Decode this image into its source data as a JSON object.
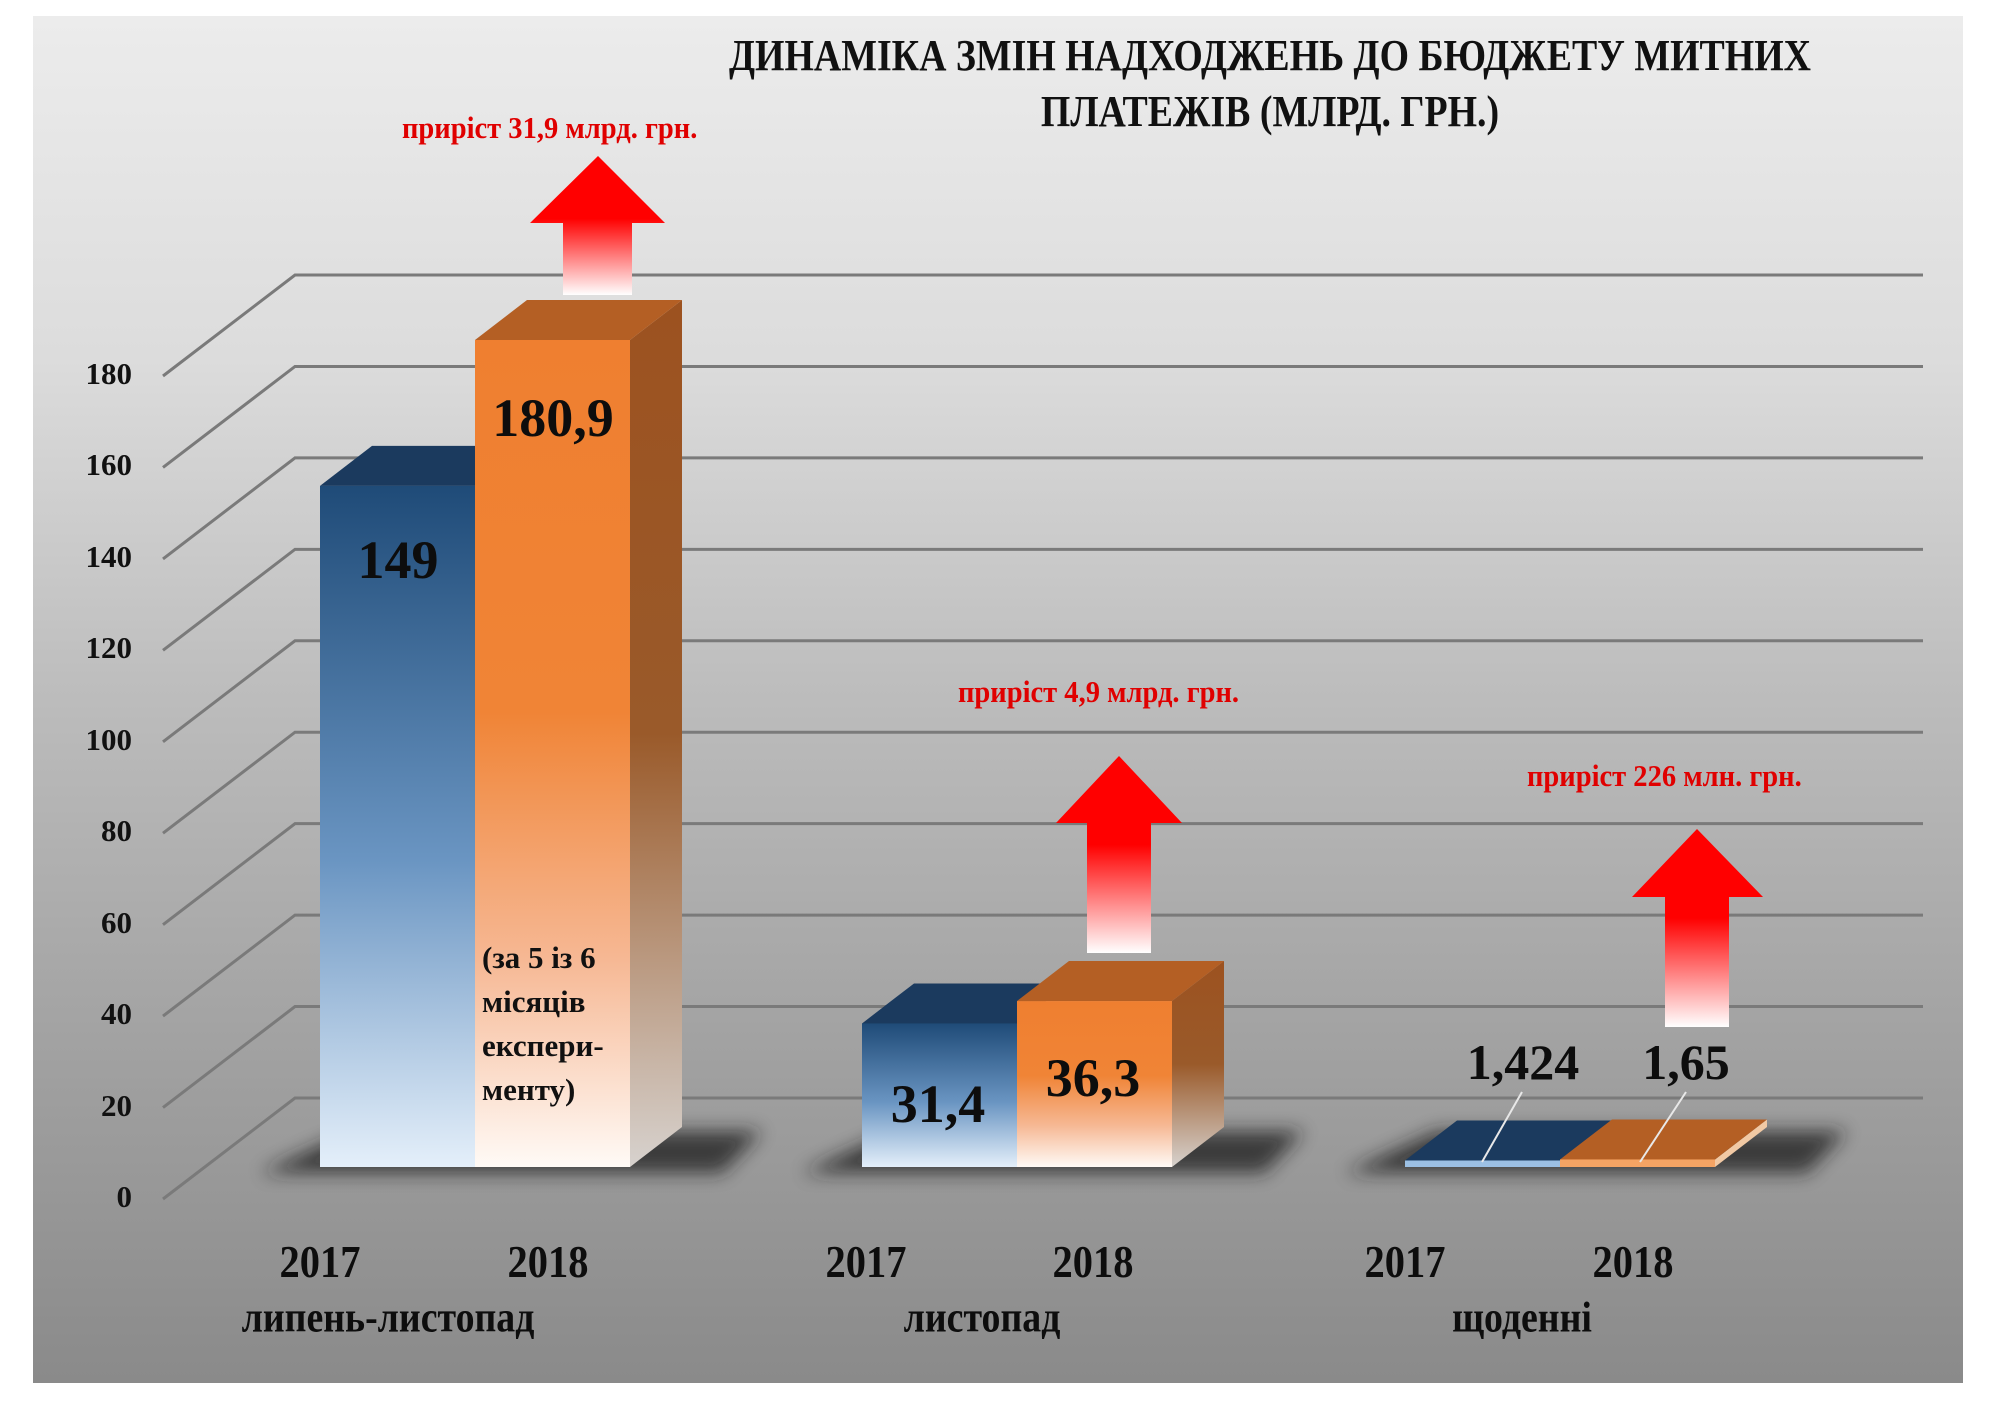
{
  "chart_data": {
    "type": "bar",
    "title": "ДИНАМІКА ЗМІН НАДХОДЖЕНЬ ДО БЮДЖЕТУ МИТНИХ ПЛАТЕЖІВ (МЛРД. ГРН.)",
    "title_lines": [
      "ДИНАМІКА ЗМІН НАДХОДЖЕНЬ ДО БЮДЖЕТУ МИТНИХ",
      "ПЛАТЕЖІВ (МЛРД. ГРН.)"
    ],
    "categories": [
      "липень-листопад",
      "листопад",
      "щоденні"
    ],
    "series": [
      {
        "name": "2017",
        "color": "#22507e",
        "values": [
          149,
          31.4,
          1.424
        ],
        "labels": [
          "149",
          "31,4",
          "1,424"
        ]
      },
      {
        "name": "2018",
        "color": "#ef7f30",
        "values": [
          180.9,
          36.3,
          1.65
        ],
        "labels": [
          "180,9",
          "36,3",
          "1,65"
        ]
      }
    ],
    "increase_annotations": [
      "приріст 31,9 млрд. грн.",
      "приріст 4,9 млрд. грн.",
      "приріст 226 млн. грн."
    ],
    "bar_note": "(за 5 із 6 місяців експерименту)",
    "bar_note_lines": [
      "(за 5 із 6",
      "місяців",
      "експери-",
      "менту)"
    ],
    "xlabel": "",
    "ylabel": "",
    "yticks": [
      "0",
      "20",
      "40",
      "60",
      "80",
      "100",
      "120",
      "140",
      "160",
      "180"
    ],
    "ylim": [
      0,
      180
    ],
    "grid": true,
    "legend": "none",
    "style": "3d-clustered-column"
  },
  "colors": {
    "blue_front": "#22507e",
    "blue_top": "#1b3a5e",
    "orange_front": "#ef7f30",
    "orange_top": "#b45f24",
    "orange_side": "#9c5220",
    "arrow": "#ff0000",
    "annotation_text": "#e00000"
  }
}
